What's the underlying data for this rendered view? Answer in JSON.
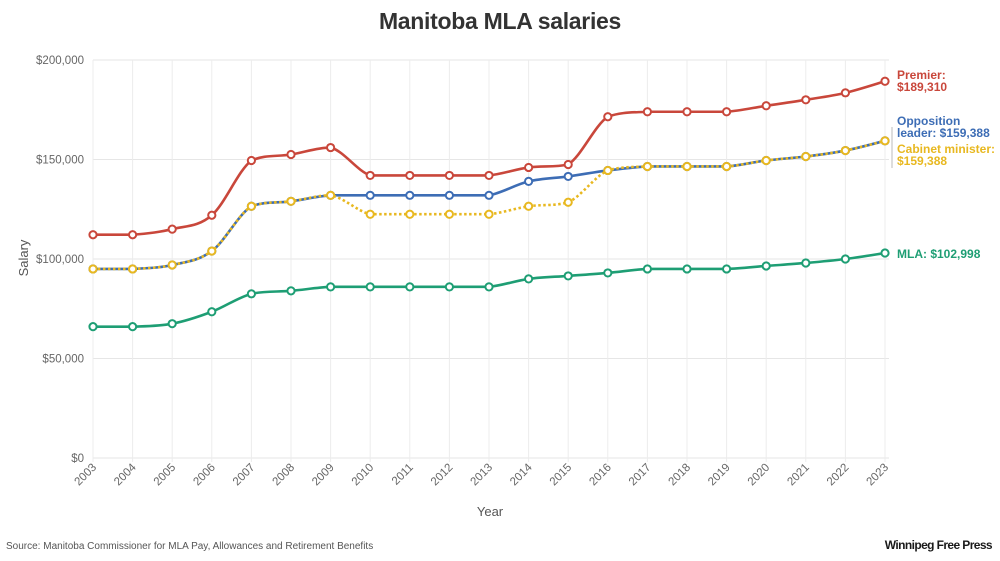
{
  "chart_data": {
    "type": "line",
    "title": "Manitoba MLA salaries",
    "xlabel": "Year",
    "ylabel": "Salary",
    "ylim": [
      0,
      200000
    ],
    "yticks": [
      0,
      50000,
      100000,
      150000,
      200000
    ],
    "ytick_labels": [
      "$0",
      "$50,000",
      "$100,000",
      "$150,000",
      "$200,000"
    ],
    "grid": true,
    "x": [
      2003,
      2004,
      2005,
      2006,
      2007,
      2008,
      2009,
      2010,
      2011,
      2012,
      2013,
      2014,
      2015,
      2016,
      2017,
      2018,
      2019,
      2020,
      2021,
      2022,
      2023
    ],
    "x_labels": [
      "2003",
      "2004",
      "2005",
      "2006",
      "2007",
      "2008",
      "2009",
      "2010",
      "2011",
      "2012",
      "2013",
      "2014",
      "2015",
      "2016",
      "2017",
      "2018",
      "2019",
      "2020",
      "2021",
      "2022",
      "2023"
    ],
    "series": [
      {
        "name": "Premier",
        "color": "#c9473b",
        "style": "solid",
        "end_label": [
          "Premier:",
          "$189,310"
        ],
        "values": [
          112200,
          112200,
          115000,
          122000,
          149500,
          152500,
          156000,
          142000,
          142000,
          142000,
          142000,
          146000,
          147500,
          171500,
          174000,
          174000,
          174000,
          177000,
          180000,
          183500,
          189310
        ]
      },
      {
        "name": "Opposition leader",
        "color": "#3d6db5",
        "style": "solid",
        "end_label": [
          "Opposition",
          "leader: $159,388"
        ],
        "values": [
          95000,
          95000,
          97000,
          104000,
          126500,
          129000,
          132000,
          132000,
          132000,
          132000,
          132000,
          139000,
          141500,
          144500,
          146500,
          146500,
          146500,
          149500,
          151500,
          154500,
          159388
        ]
      },
      {
        "name": "Cabinet minister",
        "color": "#e8b820",
        "style": "dotted",
        "end_label": [
          "Cabinet minister:",
          "$159,388"
        ],
        "values": [
          95000,
          95000,
          97000,
          104000,
          126500,
          129000,
          132000,
          122500,
          122500,
          122500,
          122500,
          126500,
          128500,
          144500,
          146500,
          146500,
          146500,
          149500,
          151500,
          154500,
          159388
        ]
      },
      {
        "name": "MLA",
        "color": "#1e9e74",
        "style": "solid",
        "end_label": [
          "MLA: $102,998"
        ],
        "values": [
          66000,
          66000,
          67500,
          73500,
          82500,
          84000,
          86000,
          86000,
          86000,
          86000,
          86000,
          90000,
          91500,
          93000,
          95000,
          95000,
          95000,
          96500,
          98000,
          100000,
          102998
        ]
      }
    ]
  },
  "footer": {
    "source": "Source: Manitoba Commissioner for MLA Pay, Allowances and Retirement Benefits",
    "brand": "Winnipeg Free Press"
  }
}
